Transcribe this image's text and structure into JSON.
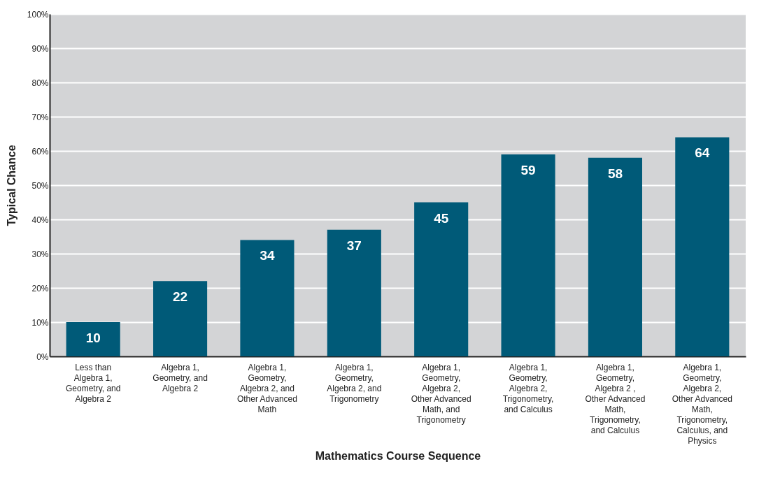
{
  "chart_data": {
    "type": "bar",
    "xlabel": "Mathematics Course Sequence",
    "ylabel": "Typical Chance",
    "categories": [
      "Less than Algebra 1, Geometry, and Algebra 2",
      "Algebra 1, Geometry, and Algebra 2",
      "Algebra 1, Geometry, Algebra 2, and Other Advanced Math",
      "Algebra 1, Geometry, Algebra 2, and Trigonometry",
      "Algebra 1, Geometry, Algebra 2, Other Advanced Math, and Trigonometry",
      "Algebra 1, Geometry, Algebra 2, Trigonometry, and Calculus",
      "Algebra 1, Geometry, Algebra 2 , Other Advanced Math, Trigonometry, and Calculus",
      "Algebra 1, Geometry, Algebra 2, Other Advanced Math, Trigonometry, Calculus, and Physics"
    ],
    "values": [
      10,
      22,
      34,
      37,
      45,
      59,
      58,
      64
    ],
    "color": "#005a78",
    "data_labels": true,
    "grid": "y",
    "ylim": [
      0,
      100
    ],
    "yticks": [
      {
        "value": 0,
        "label": "0%"
      },
      {
        "value": 10,
        "label": "10%"
      },
      {
        "value": 20,
        "label": "20%"
      },
      {
        "value": 30,
        "label": "30%"
      },
      {
        "value": 40,
        "label": "40%"
      },
      {
        "value": 50,
        "label": "50%"
      },
      {
        "value": 60,
        "label": "60%"
      },
      {
        "value": 70,
        "label": "70%"
      },
      {
        "value": 80,
        "label": "80%"
      },
      {
        "value": 90,
        "label": "90%"
      },
      {
        "value": 100,
        "label": "100%"
      }
    ]
  }
}
